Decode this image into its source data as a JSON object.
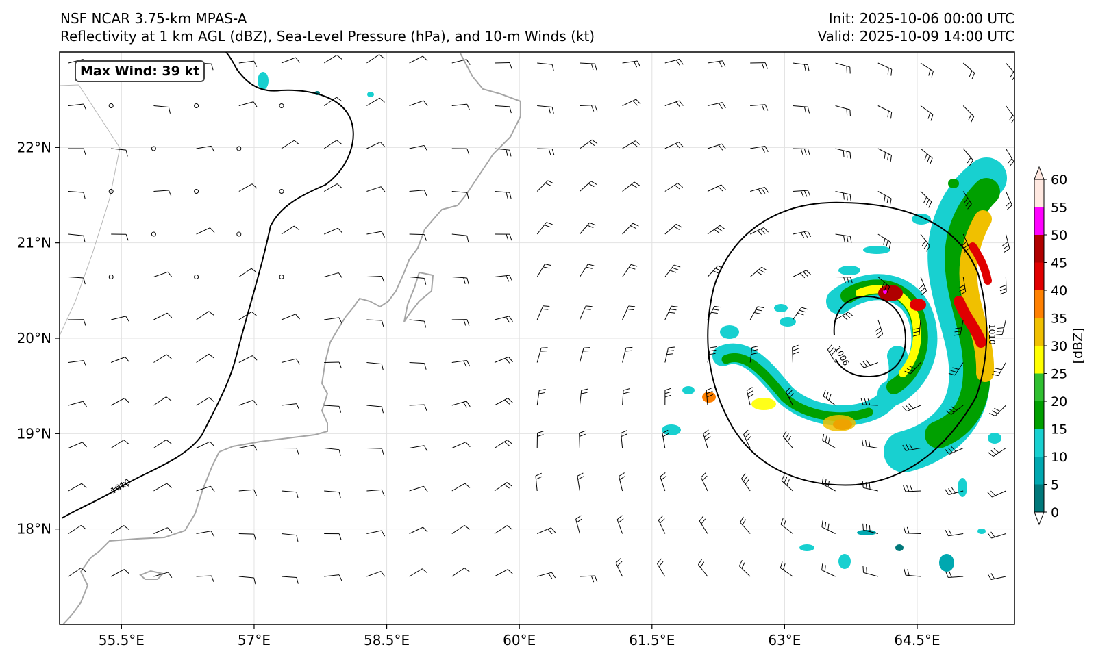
{
  "header": {
    "model": "NSF NCAR 3.75-km MPAS-A",
    "fields": "Reflectivity at 1 km AGL (dBZ), Sea-Level Pressure (hPa), and 10-m Winds (kt)",
    "init": "Init: 2025-10-06 00:00 UTC",
    "valid": "Valid: 2025-10-09 14:00 UTC"
  },
  "max_wind_label": "Max Wind: 39 kt",
  "map": {
    "lon_range": [
      54.8,
      65.6
    ],
    "lat_range": [
      17.0,
      23.0
    ],
    "lon_ticks": [
      55.5,
      57,
      58.5,
      60,
      61.5,
      63,
      64.5
    ],
    "lon_tick_labels": [
      "55.5°E",
      "57°E",
      "58.5°E",
      "60°E",
      "61.5°E",
      "63°E",
      "64.5°E"
    ],
    "lat_ticks": [
      18,
      19,
      20,
      21,
      22
    ],
    "lat_tick_labels": [
      "18°N",
      "19°N",
      "20°N",
      "21°N",
      "22°N"
    ],
    "grid": true,
    "contour_labels": [
      "1010",
      "1010",
      "1006"
    ]
  },
  "colorbar": {
    "label": "[dBZ]",
    "ticks": [
      0,
      5,
      10,
      15,
      20,
      25,
      30,
      35,
      40,
      45,
      50,
      55,
      60
    ],
    "colors": [
      "#00787a",
      "#00a8b0",
      "#18d0d0",
      "#00a000",
      "#30c030",
      "#ffff00",
      "#f0c000",
      "#ff8000",
      "#e00000",
      "#b00000",
      "#ff00ff",
      "#ffe8e0"
    ]
  },
  "colors": {
    "coastline": "#a6a6a6",
    "border": "#b8b8b8",
    "isobar": "#000000",
    "grid": "#e2e2e2"
  }
}
